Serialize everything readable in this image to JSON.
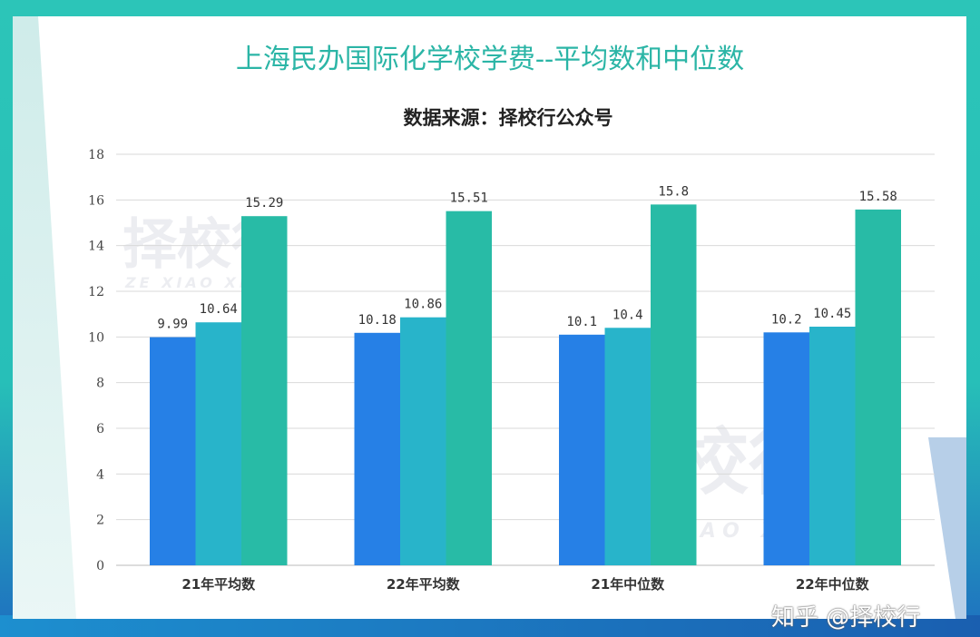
{
  "chart_data": {
    "type": "bar",
    "title": "上海民办国际化学校学费--平均数和中位数",
    "subtitle": "数据来源：择校行公众号",
    "categories": [
      "21年平均数",
      "22年平均数",
      "21年中位数",
      "22年中位数"
    ],
    "series": [
      {
        "values": [
          9.99,
          10.18,
          10.1,
          10.2
        ],
        "color": "#2680e6"
      },
      {
        "values": [
          10.64,
          10.86,
          10.4,
          10.45
        ],
        "color": "#28b4ca"
      },
      {
        "values": [
          15.29,
          15.51,
          15.8,
          15.58
        ],
        "color": "#28bba6"
      }
    ],
    "ylim": [
      0,
      18
    ],
    "yticks": [
      0,
      2,
      4,
      6,
      8,
      10,
      12,
      14,
      16,
      18
    ],
    "grid": true,
    "legend": "none"
  },
  "watermark": {
    "logo": "择校行",
    "logo_sub": "ZE XIAO XING",
    "credit": "知乎 @择校行"
  }
}
